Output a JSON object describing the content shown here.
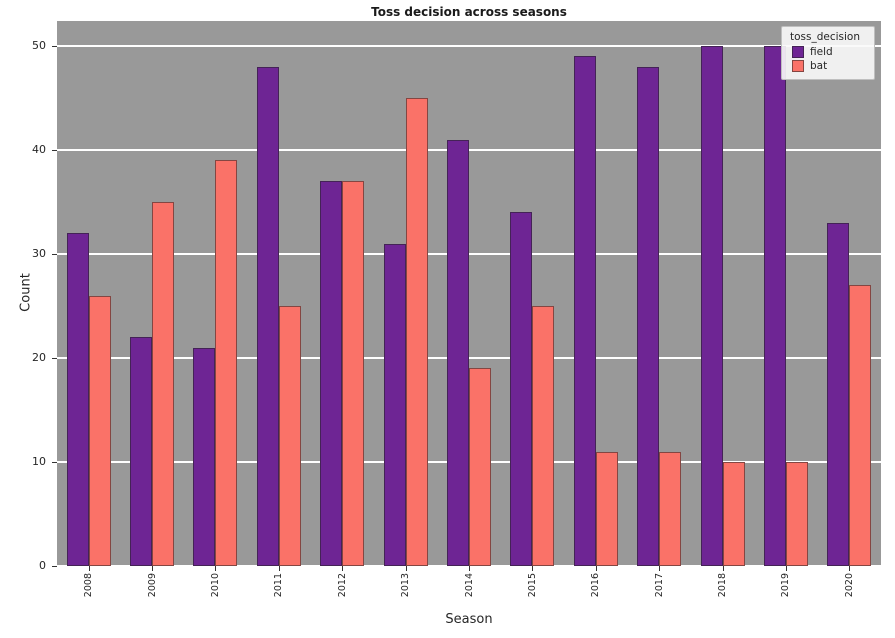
{
  "chart_data": {
    "type": "bar",
    "title": "Toss decision across seasons",
    "xlabel": "Season",
    "ylabel": "Count",
    "categories": [
      "2008",
      "2009",
      "2010",
      "2011",
      "2012",
      "2013",
      "2014",
      "2015",
      "2016",
      "2017",
      "2018",
      "2019",
      "2020"
    ],
    "series": [
      {
        "name": "field",
        "color": "#6e2594",
        "values": [
          32,
          22,
          21,
          48,
          37,
          31,
          41,
          34,
          49,
          48,
          50,
          50,
          33
        ]
      },
      {
        "name": "bat",
        "color": "#fa7268",
        "values": [
          26,
          35,
          39,
          25,
          37,
          45,
          19,
          25,
          11,
          11,
          10,
          10,
          27
        ]
      }
    ],
    "ylim": [
      0,
      52.4
    ],
    "yticks": [
      0,
      10,
      20,
      30,
      40,
      50
    ],
    "grid": true,
    "legend": {
      "title": "toss_decision",
      "entries": [
        "field",
        "bat"
      ],
      "position": "upper right"
    },
    "plot_background": "#999999",
    "gridline_color": "#ffffff"
  }
}
